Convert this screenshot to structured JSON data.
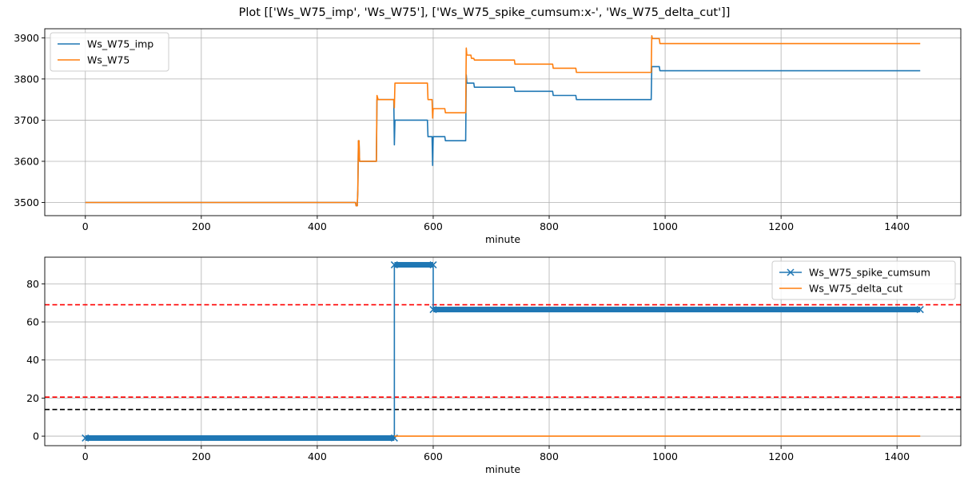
{
  "figure": {
    "title": "Plot [['Ws_W75_imp', 'Ws_W75'], ['Ws_W75_spike_cumsum:x-', 'Ws_W75_delta_cut']]"
  },
  "chart_data": [
    {
      "type": "line",
      "xlabel": "minute",
      "ylabel": "",
      "xlim": [
        -70,
        1510
      ],
      "ylim": [
        3468,
        3922
      ],
      "xticks": [
        0,
        200,
        400,
        600,
        800,
        1000,
        1200,
        1400
      ],
      "yticks": [
        3500,
        3600,
        3700,
        3800,
        3900
      ],
      "grid": true,
      "legend": "top-left",
      "series": [
        {
          "name": "Ws_W75_imp",
          "color": "#1f77b4",
          "points": [
            [
              0,
              3500
            ],
            [
              466,
              3500
            ],
            [
              467,
              3492
            ],
            [
              469,
              3492
            ],
            [
              470,
              3530
            ],
            [
              471,
              3650
            ],
            [
              472,
              3650
            ],
            [
              473,
              3600
            ],
            [
              502,
              3600
            ],
            [
              503,
              3750
            ],
            [
              532,
              3750
            ],
            [
              533,
              3640
            ],
            [
              534,
              3700
            ],
            [
              590,
              3700
            ],
            [
              591,
              3660
            ],
            [
              598,
              3660
            ],
            [
              599,
              3590
            ],
            [
              600,
              3660
            ],
            [
              620,
              3660
            ],
            [
              621,
              3650
            ],
            [
              656,
              3650
            ],
            [
              657,
              3810
            ],
            [
              658,
              3790
            ],
            [
              670,
              3790
            ],
            [
              671,
              3780
            ],
            [
              740,
              3780
            ],
            [
              741,
              3770
            ],
            [
              806,
              3770
            ],
            [
              807,
              3760
            ],
            [
              846,
              3760
            ],
            [
              847,
              3750
            ],
            [
              976,
              3750
            ],
            [
              977,
              3830
            ],
            [
              990,
              3830
            ],
            [
              991,
              3820
            ],
            [
              1440,
              3820
            ]
          ]
        },
        {
          "name": "Ws_W75",
          "color": "#ff7f0e",
          "points": [
            [
              0,
              3500
            ],
            [
              466,
              3500
            ],
            [
              467,
              3492
            ],
            [
              469,
              3492
            ],
            [
              470,
              3530
            ],
            [
              471,
              3650
            ],
            [
              472,
              3650
            ],
            [
              473,
              3600
            ],
            [
              502,
              3600
            ],
            [
              503,
              3760
            ],
            [
              505,
              3750
            ],
            [
              532,
              3750
            ],
            [
              533,
              3730
            ],
            [
              534,
              3790
            ],
            [
              590,
              3790
            ],
            [
              591,
              3750
            ],
            [
              598,
              3750
            ],
            [
              599,
              3705
            ],
            [
              600,
              3728
            ],
            [
              620,
              3728
            ],
            [
              621,
              3718
            ],
            [
              656,
              3718
            ],
            [
              657,
              3875
            ],
            [
              658,
              3858
            ],
            [
              665,
              3858
            ],
            [
              666,
              3850
            ],
            [
              670,
              3850
            ],
            [
              671,
              3846
            ],
            [
              740,
              3846
            ],
            [
              741,
              3836
            ],
            [
              806,
              3836
            ],
            [
              807,
              3826
            ],
            [
              846,
              3826
            ],
            [
              847,
              3816
            ],
            [
              976,
              3816
            ],
            [
              977,
              3905
            ],
            [
              978,
              3898
            ],
            [
              990,
              3898
            ],
            [
              991,
              3886
            ],
            [
              1440,
              3886
            ]
          ]
        }
      ]
    },
    {
      "type": "line",
      "xlabel": "minute",
      "ylabel": "",
      "xlim": [
        -70,
        1510
      ],
      "ylim": [
        -5,
        94
      ],
      "xticks": [
        0,
        200,
        400,
        600,
        800,
        1000,
        1200,
        1400
      ],
      "yticks": [
        0,
        20,
        40,
        60,
        80
      ],
      "grid": true,
      "legend": "top-right",
      "series": [
        {
          "name": "Ws_W75_spike_cumsum",
          "color": "#1f77b4",
          "marker": "x",
          "segments": [
            [
              0,
              533,
              -1
            ],
            [
              533,
              600,
              90
            ],
            [
              600,
              1440,
              66.5
            ]
          ]
        },
        {
          "name": "Ws_W75_delta_cut",
          "color": "#ff7f0e",
          "points": [
            [
              533,
              0
            ],
            [
              1440,
              0
            ]
          ]
        }
      ],
      "hlines": [
        {
          "y": 69,
          "color": "#ff0000",
          "style": "dashed"
        },
        {
          "y": 20.5,
          "color": "#ff0000",
          "style": "dashed"
        },
        {
          "y": 14,
          "color": "#000000",
          "style": "dashed"
        }
      ]
    }
  ]
}
